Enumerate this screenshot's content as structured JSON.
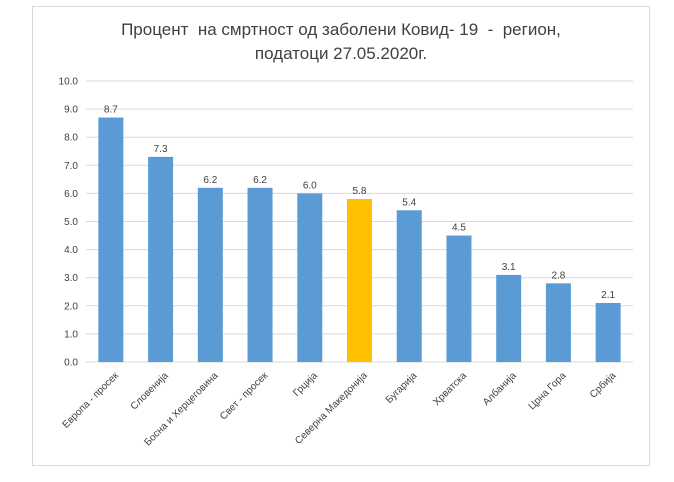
{
  "chart_data": {
    "type": "bar",
    "title_line1": "Процент  на смртност од заболени Ковид- 19  -  регион,",
    "title_line2": "податоци 27.05.2020г.",
    "categories": [
      "Европа - просек",
      "Словенија",
      "Босна и Херцеговина",
      "Свет - просек",
      "Грција",
      "Северна Македонија",
      "Бугарија",
      "Хрватска",
      "Албанија",
      "Црна Гора",
      "Србија"
    ],
    "values": [
      8.7,
      7.3,
      6.2,
      6.2,
      6.0,
      5.8,
      5.4,
      4.5,
      3.1,
      2.8,
      2.1
    ],
    "value_labels": [
      "8.7",
      "7.3",
      "6.2",
      "6.2",
      "6.0",
      "5.8",
      "5.4",
      "4.5",
      "3.1",
      "2.8",
      "2.1"
    ],
    "y_ticks": [
      "0.0",
      "1.0",
      "2.0",
      "3.0",
      "4.0",
      "5.0",
      "6.0",
      "7.0",
      "8.0",
      "9.0",
      "10.0"
    ],
    "ylim": [
      0,
      10
    ],
    "grid": true,
    "colors": {
      "default": "#5b9bd5",
      "highlight": "#ffc000",
      "grid": "#d9d9d9"
    },
    "highlight_index": 5
  }
}
